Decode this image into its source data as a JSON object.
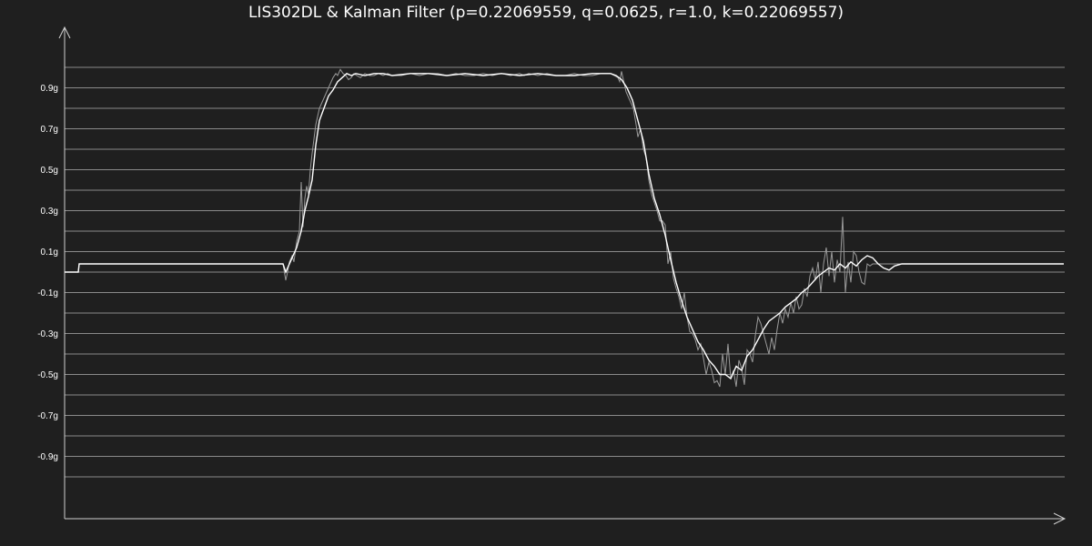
{
  "chart_data": {
    "type": "line",
    "title": "LIS302DL & Kalman Filter (p=0.22069559, q=0.0625, r=1.0, k=0.22069557)",
    "xlabel": "",
    "ylabel": "",
    "ylim": [
      -1.1,
      1.1
    ],
    "y_ticks": [
      0.9,
      0.7,
      0.5,
      0.3,
      0.1,
      -0.1,
      -0.3,
      -0.5,
      -0.7,
      -0.9
    ],
    "y_tick_labels": [
      "0.9g",
      "0.7g",
      "0.5g",
      "0.3g",
      "0.1g",
      "-0.1g",
      "-0.3g",
      "-0.5g",
      "-0.7g",
      "-0.9g"
    ],
    "grid": true,
    "grid_color": "#8a8a8a",
    "background": "#1f1f1f",
    "series": [
      {
        "color": "#9a9a9a",
        "x": [
          0,
          15,
          16,
          100,
          200,
          240,
          243,
          245,
          247,
          250,
          252,
          255,
          258,
          260,
          262,
          264,
          266,
          268,
          270,
          272,
          274,
          276,
          278,
          280,
          282,
          284,
          286,
          288,
          290,
          292,
          295,
          298,
          300,
          303,
          306,
          309,
          312,
          315,
          318,
          321,
          325,
          330,
          335,
          340,
          345,
          350,
          355,
          360,
          370,
          380,
          390,
          400,
          410,
          420,
          430,
          440,
          450,
          460,
          470,
          480,
          490,
          500,
          505,
          510,
          520,
          530,
          540,
          550,
          560,
          570,
          580,
          590,
          600,
          604,
          608,
          610,
          612,
          615,
          617,
          620,
          625,
          628,
          630,
          633,
          636,
          639,
          642,
          645,
          648,
          651,
          654,
          657,
          660,
          663,
          666,
          669,
          672,
          675,
          678,
          681,
          684,
          687,
          690,
          693,
          696,
          699,
          702,
          705,
          708,
          711,
          714,
          717,
          720,
          723,
          726,
          729,
          732,
          735,
          738,
          741,
          744,
          747,
          750,
          753,
          756,
          759,
          762,
          765,
          768,
          771,
          774,
          777,
          780,
          783,
          786,
          789,
          792,
          795,
          798,
          801,
          804,
          807,
          810,
          813,
          816,
          819,
          822,
          825,
          828,
          831,
          834,
          837,
          840,
          843,
          846,
          849,
          852,
          855,
          858,
          861,
          864,
          867,
          870,
          873,
          876,
          879,
          882,
          885,
          888,
          891,
          894,
          897,
          900,
          903,
          906,
          910,
          920,
          940,
          960,
          980,
          1000,
          1020,
          1040,
          1060,
          1080,
          1098
        ],
        "values": [
          0.0,
          0.0,
          0.04,
          0.04,
          0.04,
          0.04,
          -0.04,
          0.0,
          0.05,
          0.08,
          0.05,
          0.15,
          0.2,
          0.44,
          0.22,
          0.36,
          0.42,
          0.38,
          0.5,
          0.58,
          0.65,
          0.72,
          0.76,
          0.8,
          0.82,
          0.84,
          0.86,
          0.88,
          0.9,
          0.92,
          0.95,
          0.97,
          0.96,
          0.99,
          0.97,
          0.96,
          0.94,
          0.95,
          0.97,
          0.96,
          0.95,
          0.97,
          0.96,
          0.96,
          0.97,
          0.96,
          0.97,
          0.96,
          0.96,
          0.97,
          0.96,
          0.97,
          0.97,
          0.96,
          0.97,
          0.96,
          0.96,
          0.97,
          0.96,
          0.97,
          0.96,
          0.97,
          0.96,
          0.97,
          0.96,
          0.97,
          0.96,
          0.96,
          0.97,
          0.96,
          0.96,
          0.97,
          0.97,
          0.96,
          0.95,
          0.93,
          0.98,
          0.92,
          0.88,
          0.85,
          0.8,
          0.72,
          0.66,
          0.7,
          0.6,
          0.56,
          0.45,
          0.38,
          0.34,
          0.3,
          0.25,
          0.25,
          0.23,
          0.04,
          0.1,
          -0.03,
          -0.08,
          -0.12,
          -0.18,
          -0.1,
          -0.22,
          -0.29,
          -0.3,
          -0.33,
          -0.38,
          -0.35,
          -0.42,
          -0.5,
          -0.44,
          -0.48,
          -0.54,
          -0.53,
          -0.56,
          -0.4,
          -0.5,
          -0.35,
          -0.52,
          -0.48,
          -0.56,
          -0.43,
          -0.47,
          -0.55,
          -0.38,
          -0.4,
          -0.44,
          -0.31,
          -0.22,
          -0.25,
          -0.3,
          -0.35,
          -0.4,
          -0.32,
          -0.38,
          -0.28,
          -0.2,
          -0.25,
          -0.18,
          -0.22,
          -0.15,
          -0.2,
          -0.12,
          -0.18,
          -0.16,
          -0.08,
          -0.12,
          -0.02,
          0.02,
          -0.04,
          0.05,
          -0.1,
          0.04,
          0.12,
          -0.02,
          0.1,
          -0.05,
          0.06,
          0.0,
          0.27,
          -0.1,
          0.05,
          -0.05,
          0.1,
          0.08,
          0.0,
          -0.05,
          -0.06,
          0.04,
          0.03,
          0.04,
          0.04,
          0.04,
          0.04,
          0.04,
          0.04,
          0.04,
          0.04,
          0.04,
          0.04,
          0.04,
          0.04,
          0.04,
          0.04,
          0.04,
          0.04,
          0.04,
          0.04
        ]
      },
      {
        "color": "#ffffff",
        "x": [
          0,
          15,
          16,
          100,
          200,
          240,
          243,
          246,
          250,
          255,
          260,
          264,
          268,
          272,
          276,
          280,
          285,
          290,
          295,
          300,
          305,
          310,
          315,
          320,
          330,
          340,
          350,
          360,
          380,
          400,
          420,
          440,
          460,
          480,
          500,
          520,
          540,
          560,
          580,
          600,
          606,
          612,
          618,
          624,
          630,
          636,
          642,
          648,
          654,
          660,
          666,
          672,
          678,
          684,
          690,
          696,
          702,
          708,
          714,
          720,
          726,
          732,
          738,
          744,
          750,
          756,
          762,
          768,
          774,
          780,
          786,
          792,
          798,
          804,
          810,
          816,
          822,
          828,
          834,
          840,
          846,
          852,
          858,
          864,
          870,
          876,
          882,
          888,
          894,
          900,
          906,
          912,
          920,
          940,
          960,
          980,
          1000,
          1020,
          1040,
          1060,
          1080,
          1098
        ],
        "values": [
          0.0,
          0.0,
          0.04,
          0.04,
          0.04,
          0.04,
          0.0,
          0.03,
          0.07,
          0.12,
          0.2,
          0.3,
          0.37,
          0.45,
          0.62,
          0.74,
          0.8,
          0.86,
          0.89,
          0.93,
          0.95,
          0.97,
          0.96,
          0.97,
          0.96,
          0.97,
          0.97,
          0.96,
          0.97,
          0.97,
          0.96,
          0.97,
          0.96,
          0.97,
          0.96,
          0.97,
          0.96,
          0.96,
          0.97,
          0.97,
          0.96,
          0.94,
          0.9,
          0.84,
          0.74,
          0.64,
          0.48,
          0.36,
          0.28,
          0.18,
          0.06,
          -0.05,
          -0.14,
          -0.22,
          -0.28,
          -0.34,
          -0.38,
          -0.43,
          -0.46,
          -0.5,
          -0.5,
          -0.52,
          -0.46,
          -0.48,
          -0.41,
          -0.38,
          -0.33,
          -0.28,
          -0.24,
          -0.22,
          -0.2,
          -0.17,
          -0.15,
          -0.13,
          -0.1,
          -0.08,
          -0.05,
          -0.02,
          0.0,
          0.02,
          0.01,
          0.04,
          0.02,
          0.05,
          0.03,
          0.06,
          0.08,
          0.07,
          0.04,
          0.02,
          0.01,
          0.03,
          0.04,
          0.04,
          0.04,
          0.04,
          0.04,
          0.04,
          0.04,
          0.04,
          0.04,
          0.04
        ]
      }
    ]
  }
}
